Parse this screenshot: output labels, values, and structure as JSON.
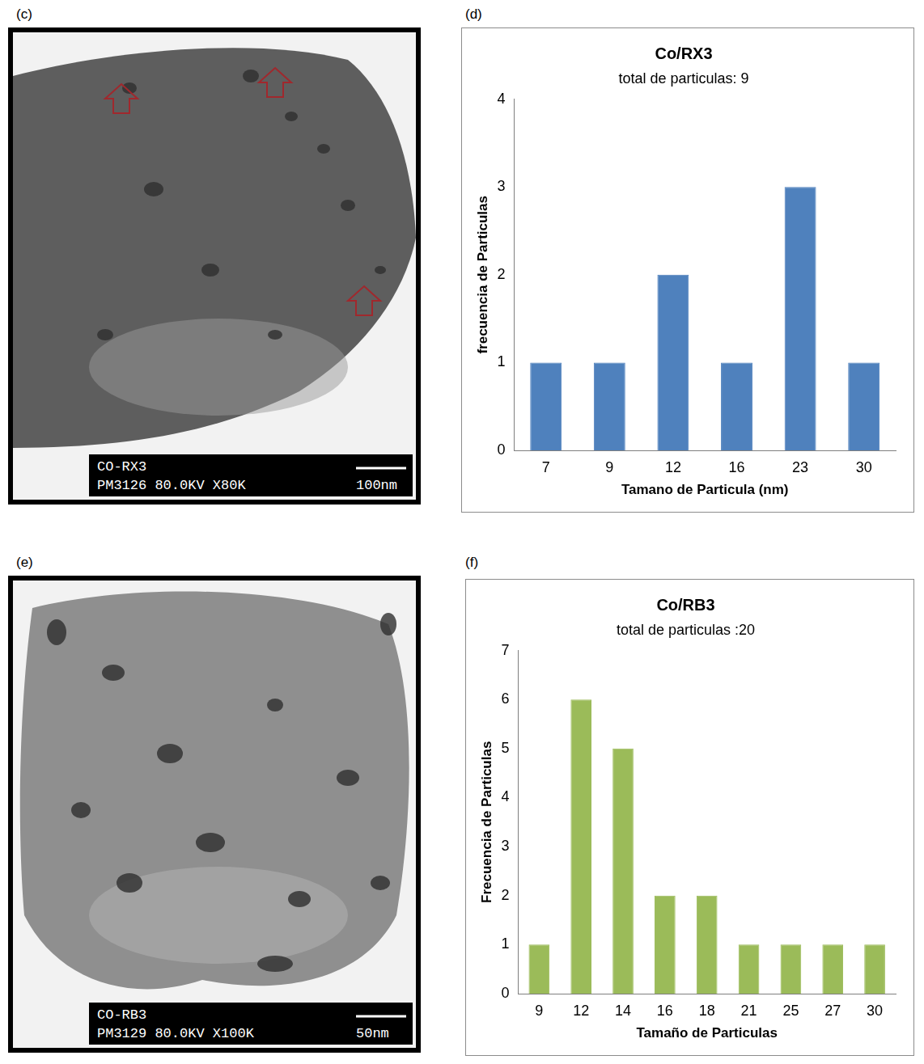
{
  "chart_data": [
    {
      "type": "bar",
      "panel": "(d)",
      "title": "Co/RX3",
      "subtitle": "total de particulas: 9",
      "x_label": "Tamano de Particula (nm)",
      "y_label": "frecuencia de Particulas",
      "categories": [
        "7",
        "9",
        "12",
        "16",
        "23",
        "30"
      ],
      "values": [
        1,
        1,
        2,
        1,
        3,
        1
      ],
      "color": "#4f81bd",
      "ylim": [
        0,
        4
      ],
      "yticks": [
        0,
        1,
        2,
        3,
        4
      ],
      "grid": false
    },
    {
      "type": "bar",
      "panel": "(f)",
      "title": "Co/RB3",
      "subtitle": "total de particulas :20",
      "x_label": "Tamaño de Particulas",
      "y_label": "Frecuencia de Particulas",
      "categories": [
        "9",
        "12",
        "14",
        "16",
        "18",
        "21",
        "25",
        "27",
        "30"
      ],
      "values": [
        1,
        6,
        5,
        2,
        2,
        1,
        1,
        1,
        1
      ],
      "color": "#9bbb59",
      "ylim": [
        0,
        7
      ],
      "yticks": [
        0,
        1,
        2,
        3,
        4,
        5,
        6,
        7
      ],
      "grid": false
    }
  ],
  "micrographs": [
    {
      "panel": "(c)",
      "sample": "CO-RX3",
      "code": "PM3126",
      "voltage": "80.0KV",
      "magnification": "X80K",
      "scale_bar": "100nm"
    },
    {
      "panel": "(e)",
      "sample": "CO-RB3",
      "code": "PM3129",
      "voltage": "80.0KV",
      "magnification": "X100K",
      "scale_bar": "50nm"
    }
  ]
}
